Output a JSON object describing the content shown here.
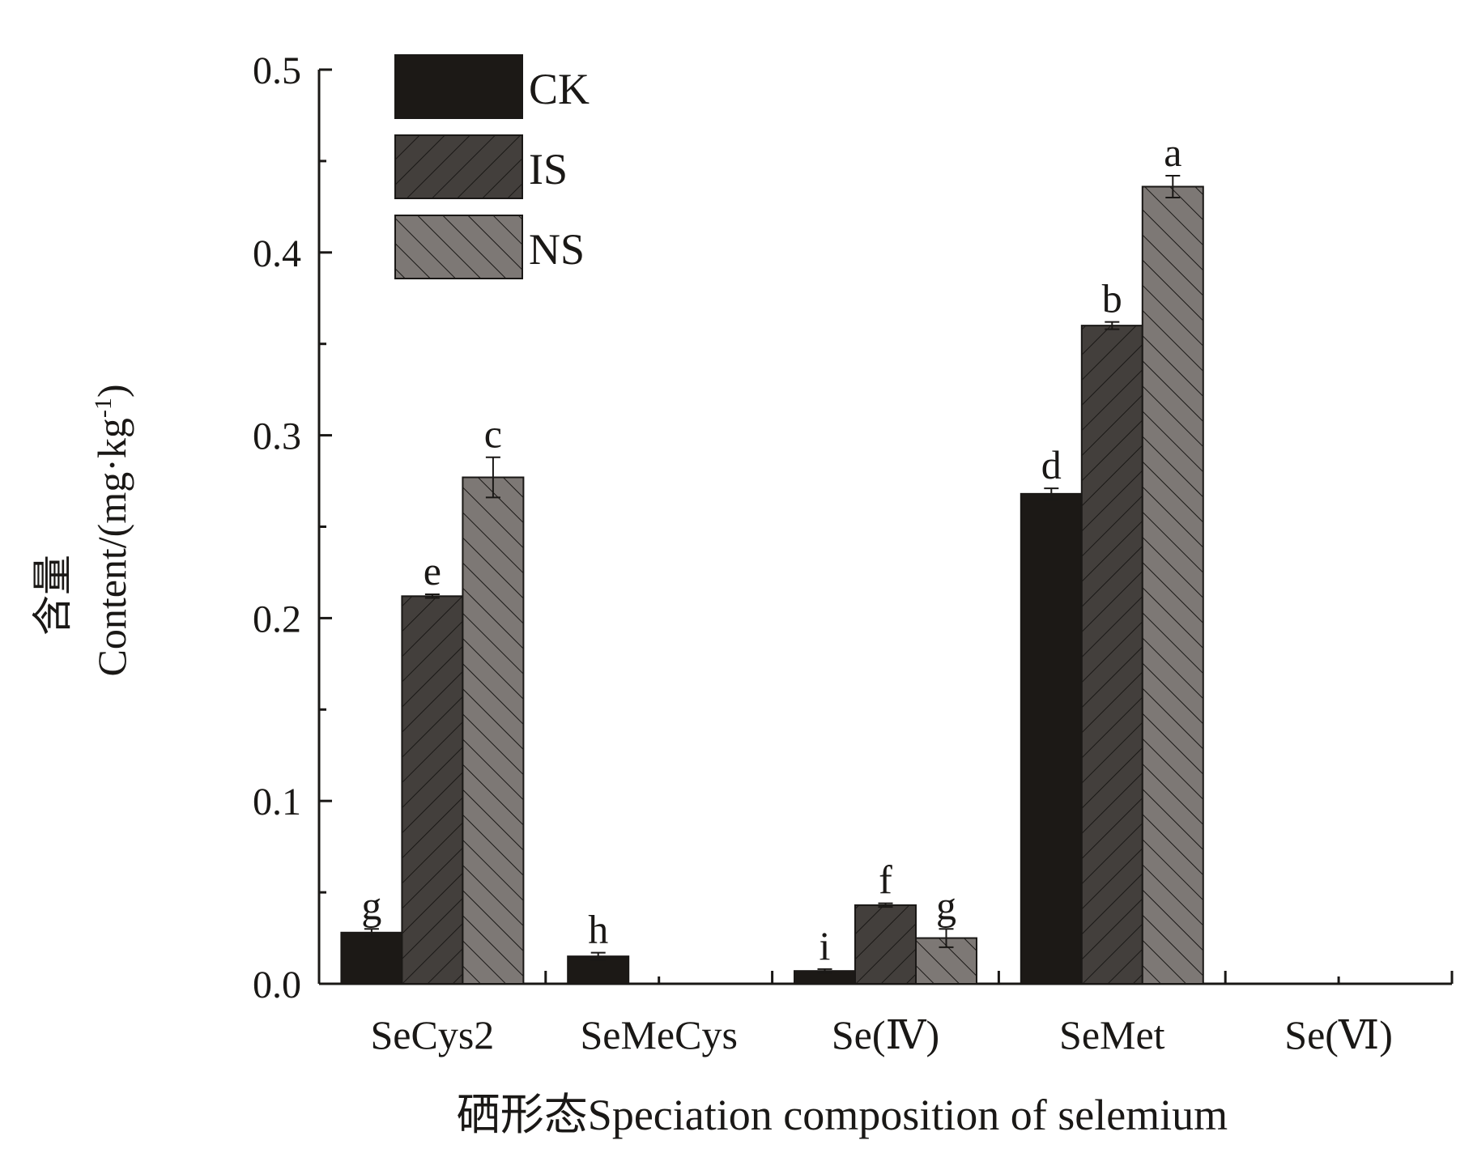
{
  "chart_data": {
    "type": "bar",
    "title": "",
    "xlabel": "硒形态Speciation composition of selemium",
    "ylabel_cn": "含量",
    "ylabel": "Content/(mg·kg",
    "ylabel_sup": "-1",
    "ylabel_close": ")",
    "ylim": [
      0,
      0.5
    ],
    "yticks": [
      "0.0",
      "0.1",
      "0.2",
      "0.3",
      "0.4",
      "0.5"
    ],
    "categories": [
      "SeCys2",
      "SeMeCys",
      "Se(Ⅳ)",
      "SeMet",
      "Se(Ⅵ)"
    ],
    "legend_position": "top-left",
    "series": [
      {
        "name": "CK",
        "color": "#1c1916",
        "hatch": "none",
        "values": [
          0.028,
          0.015,
          0.007,
          0.268,
          null
        ],
        "errors": [
          0.002,
          0.002,
          0.001,
          0.003,
          null
        ],
        "letters": [
          "g",
          "h",
          "i",
          "d",
          null
        ]
      },
      {
        "name": "IS",
        "color": "#433f3c",
        "hatch": "forward",
        "values": [
          0.212,
          null,
          0.043,
          0.36,
          null
        ],
        "errors": [
          0.001,
          null,
          0.001,
          0.002,
          null
        ],
        "letters": [
          "e",
          null,
          "f",
          "b",
          null
        ]
      },
      {
        "name": "NS",
        "color": "#7d7875",
        "hatch": "backward",
        "values": [
          0.277,
          null,
          0.025,
          0.436,
          null
        ],
        "errors": [
          0.011,
          null,
          0.005,
          0.006,
          null
        ],
        "letters": [
          "c",
          null,
          "g",
          "a",
          null
        ]
      }
    ]
  }
}
